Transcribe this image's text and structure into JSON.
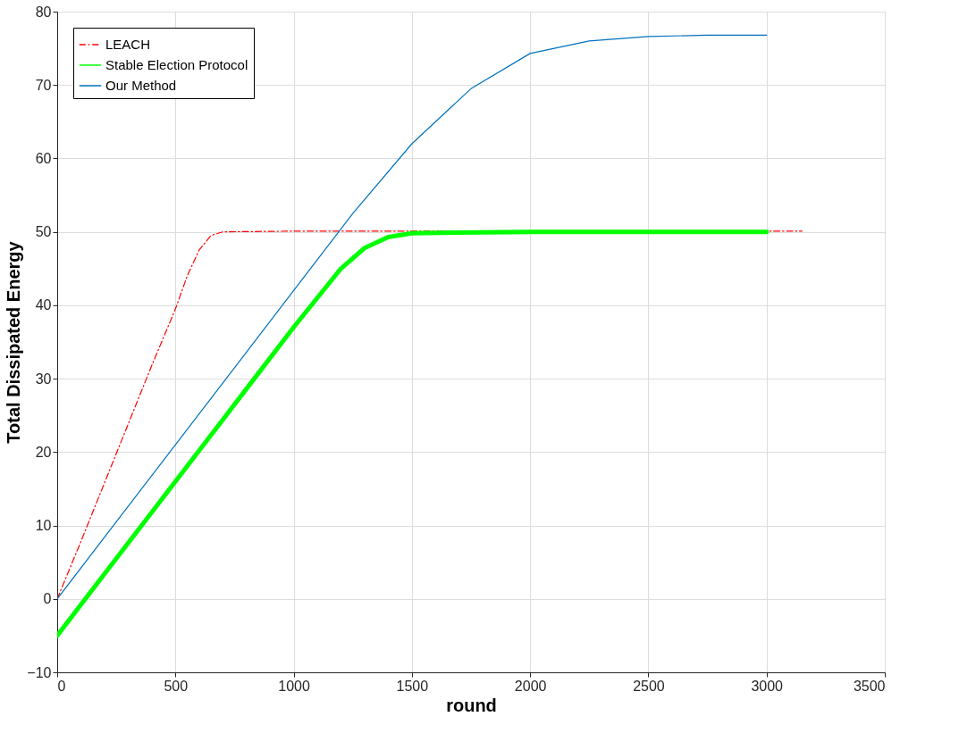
{
  "chart_data": {
    "type": "line",
    "xlabel": "round",
    "ylabel": "Total Dissipated Energy",
    "xlim": [
      0,
      3500
    ],
    "ylim": [
      -10,
      80
    ],
    "xticks": [
      0,
      500,
      1000,
      1500,
      2000,
      2500,
      3000,
      3500
    ],
    "yticks": [
      -10,
      0,
      10,
      20,
      30,
      40,
      50,
      60,
      70,
      80
    ],
    "grid": true,
    "legend": "top left",
    "marker": "none",
    "series": [
      {
        "name": "LEACH",
        "color": "#ff0000",
        "line_style": "dashed",
        "x": [
          0,
          100,
          200,
          300,
          400,
          500,
          550,
          600,
          650,
          700,
          1000,
          3150
        ],
        "values": [
          0,
          7.8,
          15.8,
          23.8,
          31.8,
          39.5,
          44,
          47.5,
          49.5,
          50,
          50.1,
          50.1
        ]
      },
      {
        "name": "Stable Election Protocol",
        "color": "#00ff00",
        "line_style": "solid",
        "x": [
          0,
          200,
          400,
          600,
          800,
          1000,
          1200,
          1300,
          1400,
          1500,
          1700,
          2000,
          3000
        ],
        "values": [
          -5,
          3.4,
          11.8,
          20.2,
          28.6,
          37,
          45,
          47.8,
          49.3,
          49.8,
          49.9,
          50,
          50
        ]
      },
      {
        "name": "Our Method",
        "color": "#0072bd",
        "line_style": "solid",
        "x": [
          0,
          250,
          500,
          750,
          1000,
          1250,
          1500,
          1750,
          2000,
          2250,
          2500,
          2750,
          3000
        ],
        "values": [
          0,
          10.5,
          21,
          31.5,
          42,
          52.5,
          62,
          69.5,
          74.3,
          76,
          76.6,
          76.8,
          76.8
        ]
      }
    ]
  }
}
